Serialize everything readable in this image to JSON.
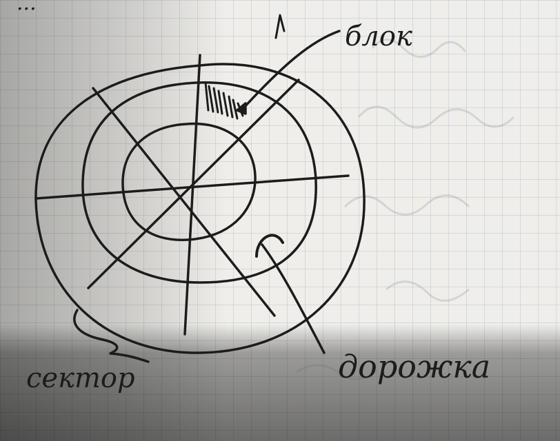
{
  "labels": {
    "top_partial": "...",
    "block": "блок",
    "track": "дорожка",
    "sector": "сектор"
  },
  "colors": {
    "ink": "#1c1c1c",
    "paper": "#efeeea",
    "grid": "#8a98b0"
  }
}
